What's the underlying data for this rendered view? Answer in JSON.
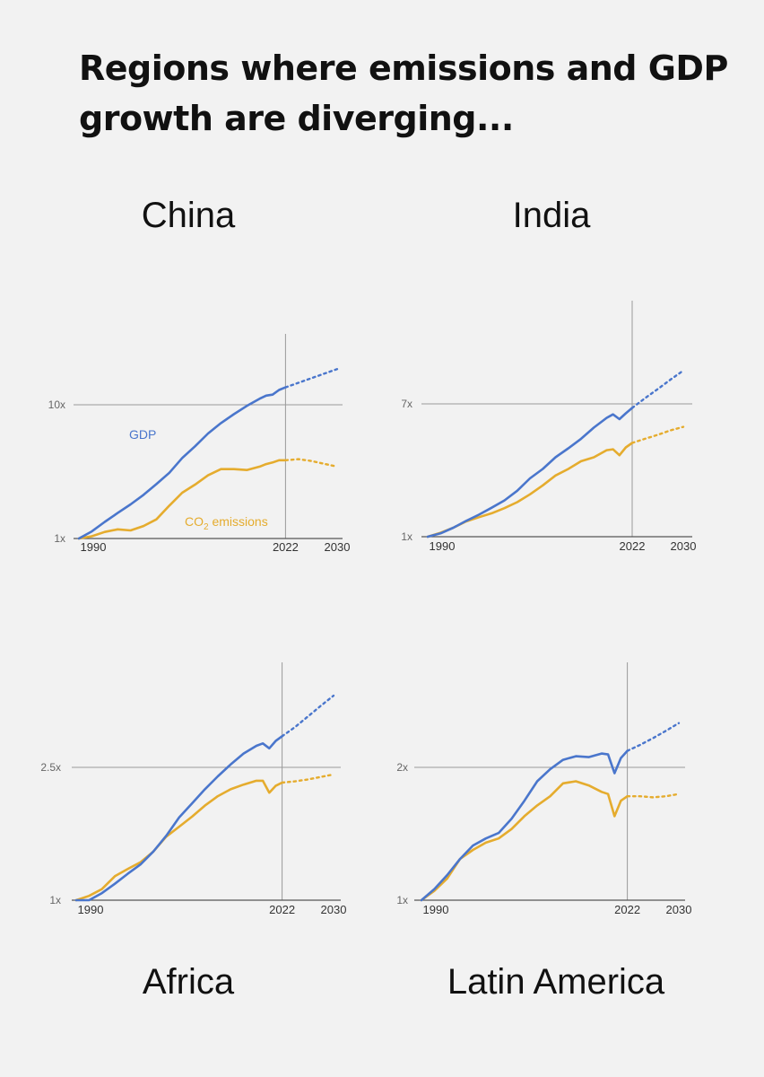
{
  "headline": "Regions where emissions and GDP growth are diverging...",
  "colors": {
    "gdp": "#4a76cc",
    "co2": "#e5ac2e",
    "grid": "#9a9a9a",
    "axis": "#555555"
  },
  "chart_data": [
    {
      "type": "line",
      "title": "China",
      "xlabel": "",
      "ylabel": "",
      "x_ticks": [
        "1990",
        "2022",
        "2030"
      ],
      "y_ticks": [
        "1x",
        "10x"
      ],
      "y_ref_value": 10,
      "ylim": [
        1,
        16
      ],
      "xlim": [
        1988,
        2030
      ],
      "y_scale": "log",
      "series": [
        {
          "name": "GDP",
          "key": "gdp",
          "label_text": "GDP",
          "x": [
            1990,
            1992,
            1994,
            1996,
            1998,
            2000,
            2002,
            2004,
            2006,
            2008,
            2010,
            2012,
            2014,
            2016,
            2018,
            2019,
            2020,
            2021,
            2022
          ],
          "values": [
            1.0,
            1.13,
            1.33,
            1.55,
            1.8,
            2.12,
            2.55,
            3.1,
            4.0,
            4.9,
            6.1,
            7.3,
            8.5,
            9.8,
            11.1,
            11.7,
            11.9,
            12.9,
            13.5
          ],
          "projection_x": [
            2022,
            2024,
            2026,
            2028,
            2030
          ],
          "projection_values": [
            13.5,
            14.6,
            15.8,
            17.1,
            18.5
          ]
        },
        {
          "name": "CO2 emissions",
          "key": "co2",
          "label_text": "CO",
          "label_sub": "2",
          "label_rest": " emissions",
          "x": [
            1990,
            1992,
            1994,
            1996,
            1998,
            2000,
            2002,
            2004,
            2006,
            2008,
            2010,
            2012,
            2014,
            2016,
            2018,
            2019,
            2020,
            2021,
            2022
          ],
          "values": [
            1.0,
            1.04,
            1.12,
            1.17,
            1.15,
            1.24,
            1.39,
            1.76,
            2.2,
            2.53,
            2.97,
            3.3,
            3.3,
            3.25,
            3.45,
            3.6,
            3.7,
            3.85,
            3.85
          ],
          "projection_x": [
            2022,
            2024,
            2026,
            2028,
            2030
          ],
          "projection_values": [
            3.85,
            3.92,
            3.8,
            3.62,
            3.45
          ]
        }
      ]
    },
    {
      "type": "line",
      "title": "India",
      "xlabel": "",
      "ylabel": "",
      "x_ticks": [
        "1990",
        "2022",
        "2030"
      ],
      "y_ticks": [
        "1x",
        "7x"
      ],
      "y_ref_value": 7,
      "ylim": [
        1,
        12
      ],
      "xlim": [
        1988,
        2030
      ],
      "y_scale": "log",
      "series": [
        {
          "name": "GDP",
          "key": "gdp",
          "x": [
            1990,
            1992,
            1994,
            1996,
            1998,
            2000,
            2002,
            2004,
            2006,
            2008,
            2010,
            2012,
            2014,
            2016,
            2018,
            2019,
            2020,
            2021,
            2022
          ],
          "values": [
            1.0,
            1.05,
            1.14,
            1.26,
            1.38,
            1.53,
            1.7,
            1.96,
            2.35,
            2.7,
            3.2,
            3.65,
            4.2,
            4.95,
            5.7,
            6.0,
            5.6,
            6.1,
            6.6
          ],
          "projection_x": [
            2022,
            2024,
            2026,
            2028,
            2030
          ],
          "projection_values": [
            6.6,
            7.6,
            8.7,
            10.0,
            11.4
          ]
        },
        {
          "name": "CO2 emissions",
          "key": "co2",
          "x": [
            1990,
            1992,
            1994,
            1996,
            1998,
            2000,
            2002,
            2004,
            2006,
            2008,
            2010,
            2012,
            2014,
            2016,
            2018,
            2019,
            2020,
            2021,
            2022
          ],
          "values": [
            1.0,
            1.06,
            1.14,
            1.25,
            1.33,
            1.41,
            1.52,
            1.66,
            1.86,
            2.12,
            2.45,
            2.7,
            3.02,
            3.2,
            3.55,
            3.6,
            3.3,
            3.7,
            3.95
          ],
          "projection_x": [
            2022,
            2024,
            2026,
            2028,
            2030
          ],
          "projection_values": [
            3.95,
            4.2,
            4.45,
            4.75,
            5.0
          ]
        }
      ]
    },
    {
      "type": "line",
      "title": "Africa",
      "xlabel": "",
      "ylabel": "",
      "x_ticks": [
        "1990",
        "2022",
        "2030"
      ],
      "y_ticks": [
        "1x",
        "2.5x"
      ],
      "y_ref_value": 2.5,
      "ylim": [
        1,
        3.7
      ],
      "xlim": [
        1988,
        2030
      ],
      "y_scale": "log",
      "series": [
        {
          "name": "GDP",
          "key": "gdp",
          "x": [
            1990,
            1992,
            1994,
            1996,
            1998,
            2000,
            2002,
            2004,
            2006,
            2008,
            2010,
            2012,
            2014,
            2016,
            2018,
            2019,
            2020,
            2021,
            2022
          ],
          "values": [
            1.0,
            1.0,
            1.05,
            1.12,
            1.2,
            1.28,
            1.4,
            1.56,
            1.77,
            1.95,
            2.15,
            2.35,
            2.55,
            2.75,
            2.9,
            2.95,
            2.85,
            3.0,
            3.1
          ],
          "projection_x": [
            2022,
            2024,
            2026,
            2028,
            2030
          ],
          "projection_values": [
            3.1,
            3.3,
            3.55,
            3.82,
            4.1
          ]
        },
        {
          "name": "CO2 emissions",
          "key": "co2",
          "x": [
            1990,
            1992,
            1994,
            1996,
            1998,
            2000,
            2002,
            2004,
            2006,
            2008,
            2010,
            2012,
            2014,
            2016,
            2018,
            2019,
            2020,
            2021,
            2022
          ],
          "values": [
            1.0,
            1.03,
            1.08,
            1.18,
            1.24,
            1.3,
            1.4,
            1.55,
            1.66,
            1.78,
            1.92,
            2.05,
            2.15,
            2.22,
            2.28,
            2.28,
            2.1,
            2.2,
            2.25
          ],
          "projection_x": [
            2022,
            2024,
            2026,
            2028,
            2030
          ],
          "projection_values": [
            2.25,
            2.27,
            2.3,
            2.34,
            2.38
          ]
        }
      ]
    },
    {
      "type": "line",
      "title": "Latin America",
      "xlabel": "",
      "ylabel": "",
      "x_ticks": [
        "1990",
        "2022",
        "2030"
      ],
      "y_ticks": [
        "1x",
        "2x"
      ],
      "y_ref_value": 2,
      "ylim": [
        1,
        2.7
      ],
      "xlim": [
        1988,
        2030
      ],
      "y_scale": "log",
      "series": [
        {
          "name": "GDP",
          "key": "gdp",
          "x": [
            1990,
            1992,
            1994,
            1996,
            1998,
            2000,
            2002,
            2004,
            2006,
            2008,
            2010,
            2012,
            2014,
            2016,
            2018,
            2019,
            2020,
            2021,
            2022
          ],
          "values": [
            1.0,
            1.06,
            1.14,
            1.24,
            1.33,
            1.38,
            1.42,
            1.53,
            1.68,
            1.86,
            1.98,
            2.08,
            2.12,
            2.11,
            2.15,
            2.14,
            1.94,
            2.1,
            2.18
          ],
          "projection_x": [
            2022,
            2024,
            2026,
            2028,
            2030
          ],
          "projection_values": [
            2.18,
            2.25,
            2.33,
            2.42,
            2.52
          ]
        },
        {
          "name": "CO2 emissions",
          "key": "co2",
          "x": [
            1990,
            1992,
            1994,
            1996,
            1998,
            2000,
            2002,
            2004,
            2006,
            2008,
            2010,
            2012,
            2014,
            2016,
            2018,
            2019,
            2020,
            2021,
            2022
          ],
          "values": [
            1.0,
            1.05,
            1.12,
            1.24,
            1.3,
            1.35,
            1.38,
            1.45,
            1.55,
            1.64,
            1.72,
            1.84,
            1.86,
            1.82,
            1.76,
            1.74,
            1.55,
            1.68,
            1.72
          ],
          "projection_x": [
            2022,
            2024,
            2026,
            2028,
            2030
          ],
          "projection_values": [
            1.72,
            1.72,
            1.71,
            1.72,
            1.74
          ]
        }
      ]
    }
  ]
}
